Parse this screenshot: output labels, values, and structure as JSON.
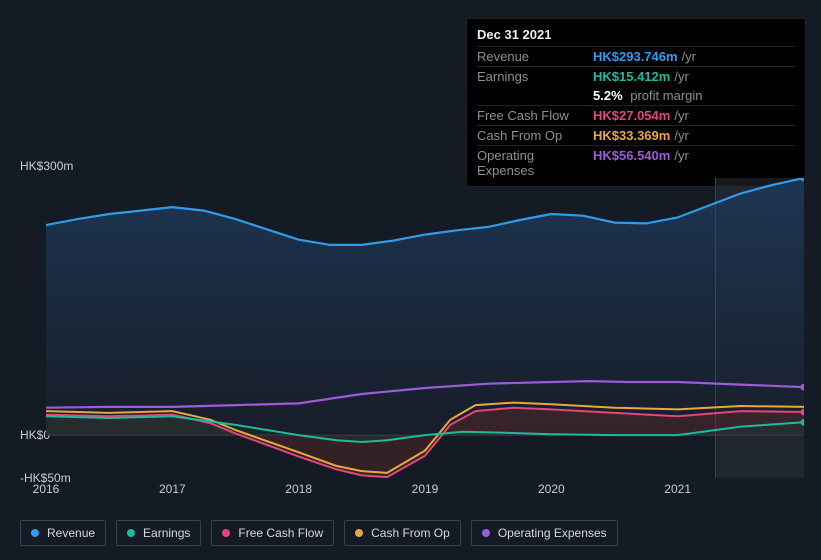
{
  "colors": {
    "background": "#151b24",
    "plot_bg_left_top": "#1d3756",
    "plot_bg_left_bottom": "#181e2a",
    "plot_bg_right": "#283039",
    "axis_text": "#c9cdd3",
    "muted_text": "#8a8f98",
    "tooltip_bg": "#000000",
    "tooltip_border": "#222222",
    "axis_line": "#3a3f48",
    "sel_line": "#3d434d"
  },
  "tooltip": {
    "date": "Dec 31 2021",
    "rows": [
      {
        "label": "Revenue",
        "value": "HK$293.746m",
        "suffix": "/yr",
        "color": "#2f9ceb"
      },
      {
        "label": "Earnings",
        "value": "HK$15.412m",
        "suffix": "/yr",
        "color": "#1fb9a0",
        "extra_line": {
          "pct": "5.2%",
          "text": "profit margin"
        }
      },
      {
        "label": "Free Cash Flow",
        "value": "HK$27.054m",
        "suffix": "/yr",
        "color": "#e3467b"
      },
      {
        "label": "Cash From Op",
        "value": "HK$33.369m",
        "suffix": "/yr",
        "color": "#e8a83e"
      },
      {
        "label": "Operating Expenses",
        "value": "HK$56.540m",
        "suffix": "/yr",
        "color": "#9b5cd6"
      }
    ]
  },
  "chart": {
    "ymin": -50,
    "ymax": 300,
    "yticks": [
      {
        "v": 300,
        "label": "HK$300m"
      },
      {
        "v": 0,
        "label": "HK$0"
      },
      {
        "v": -50,
        "label": "-HK$50m"
      }
    ],
    "xmin": 2016,
    "xmax": 2022,
    "xticks": [
      2016,
      2017,
      2018,
      2019,
      2020,
      2021
    ],
    "selection_x": 2021.3,
    "series": [
      {
        "name": "Revenue",
        "color": "#2f9ceb",
        "line_width": 2.2,
        "end_dot": true,
        "area": {
          "fill": "url(#gradRev)"
        },
        "points": [
          [
            2016,
            245
          ],
          [
            2016.25,
            252
          ],
          [
            2016.5,
            258
          ],
          [
            2016.75,
            262
          ],
          [
            2017,
            266
          ],
          [
            2017.25,
            262
          ],
          [
            2017.5,
            252
          ],
          [
            2017.75,
            240
          ],
          [
            2018,
            228
          ],
          [
            2018.25,
            222
          ],
          [
            2018.5,
            222
          ],
          [
            2018.75,
            227
          ],
          [
            2019,
            234
          ],
          [
            2019.25,
            239
          ],
          [
            2019.5,
            243
          ],
          [
            2019.75,
            251
          ],
          [
            2020,
            258
          ],
          [
            2020.25,
            256
          ],
          [
            2020.5,
            248
          ],
          [
            2020.75,
            247
          ],
          [
            2021,
            254
          ],
          [
            2021.25,
            268
          ],
          [
            2021.5,
            282
          ],
          [
            2021.75,
            292
          ],
          [
            2022,
            300
          ]
        ]
      },
      {
        "name": "Operating Expenses",
        "color": "#9b5cd6",
        "line_width": 2.2,
        "end_dot": true,
        "area": null,
        "points": [
          [
            2016,
            32
          ],
          [
            2016.5,
            33
          ],
          [
            2017,
            33
          ],
          [
            2017.5,
            35
          ],
          [
            2018,
            37
          ],
          [
            2018.5,
            48
          ],
          [
            2019,
            55
          ],
          [
            2019.5,
            60
          ],
          [
            2020,
            62
          ],
          [
            2020.3,
            63
          ],
          [
            2020.6,
            62
          ],
          [
            2021,
            62
          ],
          [
            2021.5,
            59
          ],
          [
            2022,
            56
          ]
        ]
      },
      {
        "name": "Cash From Op",
        "color": "#e8a83e",
        "line_width": 2,
        "end_dot": false,
        "area": null,
        "points": [
          [
            2016,
            28
          ],
          [
            2016.5,
            26
          ],
          [
            2017,
            28
          ],
          [
            2017.3,
            18
          ],
          [
            2017.5,
            6
          ],
          [
            2018,
            -20
          ],
          [
            2018.3,
            -36
          ],
          [
            2018.5,
            -42
          ],
          [
            2018.7,
            -44
          ],
          [
            2019,
            -18
          ],
          [
            2019.2,
            18
          ],
          [
            2019.4,
            35
          ],
          [
            2019.7,
            38
          ],
          [
            2020,
            36
          ],
          [
            2020.5,
            32
          ],
          [
            2021,
            30
          ],
          [
            2021.5,
            34
          ],
          [
            2022,
            33
          ]
        ]
      },
      {
        "name": "Free Cash Flow",
        "color": "#e3467b",
        "line_width": 2,
        "end_dot": true,
        "area": {
          "fill": "#5a2a2a",
          "opacity": 0.45
        },
        "points": [
          [
            2016,
            24
          ],
          [
            2016.5,
            22
          ],
          [
            2017,
            24
          ],
          [
            2017.3,
            14
          ],
          [
            2017.5,
            2
          ],
          [
            2018,
            -25
          ],
          [
            2018.3,
            -40
          ],
          [
            2018.5,
            -47
          ],
          [
            2018.7,
            -49
          ],
          [
            2019,
            -24
          ],
          [
            2019.2,
            12
          ],
          [
            2019.4,
            28
          ],
          [
            2019.7,
            32
          ],
          [
            2020,
            30
          ],
          [
            2020.5,
            26
          ],
          [
            2021,
            22
          ],
          [
            2021.5,
            28
          ],
          [
            2022,
            27
          ]
        ]
      },
      {
        "name": "Earnings",
        "color": "#1fb9a0",
        "line_width": 2,
        "end_dot": true,
        "area": {
          "fill": "#123a35",
          "opacity": 0.4
        },
        "points": [
          [
            2016,
            22
          ],
          [
            2016.5,
            20
          ],
          [
            2017,
            22
          ],
          [
            2017.5,
            12
          ],
          [
            2018,
            0
          ],
          [
            2018.3,
            -6
          ],
          [
            2018.5,
            -8
          ],
          [
            2018.7,
            -6
          ],
          [
            2019,
            0
          ],
          [
            2019.3,
            4
          ],
          [
            2019.6,
            3
          ],
          [
            2020,
            1
          ],
          [
            2020.5,
            0
          ],
          [
            2021,
            0
          ],
          [
            2021.5,
            10
          ],
          [
            2022,
            15
          ]
        ]
      }
    ],
    "legend": [
      {
        "label": "Revenue",
        "color": "#2f9ceb"
      },
      {
        "label": "Earnings",
        "color": "#1fb9a0"
      },
      {
        "label": "Free Cash Flow",
        "color": "#e3467b"
      },
      {
        "label": "Cash From Op",
        "color": "#e8a83e"
      },
      {
        "label": "Operating Expenses",
        "color": "#9b5cd6"
      }
    ]
  }
}
